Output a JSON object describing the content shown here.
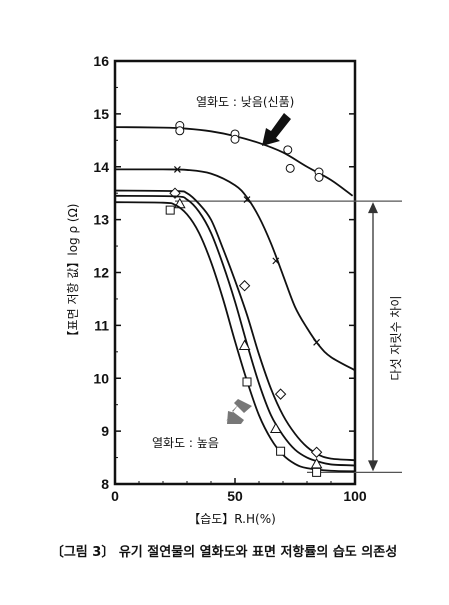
{
  "chart_data": {
    "type": "line",
    "title": "",
    "caption": "〔그림 3〕 유기 절연물의 열화도와 표면 저항률의 습도 의존성",
    "xlabel": "【습도】R.H(%)",
    "ylabel": "【표면 저항 값】log ρ (Ω)",
    "xlim": [
      0,
      100
    ],
    "ylim": [
      8,
      16
    ],
    "x_ticks": [
      "0",
      "50",
      "100"
    ],
    "y_ticks": [
      "8",
      "9",
      "10",
      "11",
      "12",
      "13",
      "14",
      "15",
      "16"
    ],
    "grid": false,
    "series": [
      {
        "name": "",
        "marker": "circle",
        "curve": [
          [
            0,
            14.75
          ],
          [
            20,
            14.74
          ],
          [
            30,
            14.72
          ],
          [
            40,
            14.67
          ],
          [
            50,
            14.58
          ],
          [
            60,
            14.45
          ],
          [
            70,
            14.27
          ],
          [
            80,
            14.0
          ],
          [
            90,
            13.75
          ],
          [
            99,
            13.45
          ]
        ],
        "points": [
          [
            27,
            14.78
          ],
          [
            27,
            14.68
          ],
          [
            50,
            14.62
          ],
          [
            50,
            14.52
          ],
          [
            72,
            14.32
          ],
          [
            73,
            13.97
          ],
          [
            85,
            13.9
          ],
          [
            85,
            13.8
          ]
        ]
      },
      {
        "name": "",
        "marker": "x",
        "curve": [
          [
            0,
            13.95
          ],
          [
            20,
            13.95
          ],
          [
            30,
            13.94
          ],
          [
            40,
            13.87
          ],
          [
            50,
            13.65
          ],
          [
            55,
            13.42
          ],
          [
            60,
            13.05
          ],
          [
            65,
            12.55
          ],
          [
            70,
            11.95
          ],
          [
            75,
            11.35
          ],
          [
            80,
            10.95
          ],
          [
            85,
            10.62
          ],
          [
            90,
            10.4
          ],
          [
            100,
            10.15
          ]
        ],
        "points": [
          [
            26,
            13.95
          ],
          [
            55,
            13.38
          ],
          [
            67,
            12.22
          ],
          [
            84,
            10.68
          ]
        ]
      },
      {
        "name": "",
        "marker": "diamond",
        "curve": [
          [
            0,
            13.55
          ],
          [
            25,
            13.54
          ],
          [
            30,
            13.5
          ],
          [
            35,
            13.3
          ],
          [
            40,
            13.0
          ],
          [
            45,
            12.45
          ],
          [
            50,
            11.85
          ],
          [
            55,
            11.2
          ],
          [
            60,
            10.45
          ],
          [
            65,
            9.8
          ],
          [
            70,
            9.3
          ],
          [
            75,
            8.95
          ],
          [
            80,
            8.7
          ],
          [
            85,
            8.55
          ],
          [
            90,
            8.48
          ],
          [
            100,
            8.45
          ]
        ],
        "points": [
          [
            25,
            13.5
          ],
          [
            54,
            11.75
          ],
          [
            69,
            9.7
          ],
          [
            84,
            8.6
          ]
        ]
      },
      {
        "name": "",
        "marker": "triangle",
        "curve": [
          [
            0,
            13.45
          ],
          [
            25,
            13.44
          ],
          [
            30,
            13.38
          ],
          [
            35,
            13.15
          ],
          [
            40,
            12.75
          ],
          [
            45,
            12.15
          ],
          [
            50,
            11.45
          ],
          [
            55,
            10.65
          ],
          [
            60,
            9.9
          ],
          [
            65,
            9.3
          ],
          [
            70,
            8.92
          ],
          [
            75,
            8.65
          ],
          [
            80,
            8.5
          ],
          [
            85,
            8.42
          ],
          [
            90,
            8.37
          ],
          [
            100,
            8.35
          ]
        ],
        "points": [
          [
            27,
            13.3
          ],
          [
            54,
            10.62
          ],
          [
            67,
            9.05
          ],
          [
            84,
            8.38
          ]
        ]
      },
      {
        "name": "",
        "marker": "square",
        "curve": [
          [
            0,
            13.33
          ],
          [
            20,
            13.32
          ],
          [
            25,
            13.28
          ],
          [
            30,
            13.1
          ],
          [
            35,
            12.75
          ],
          [
            40,
            12.2
          ],
          [
            45,
            11.5
          ],
          [
            50,
            10.7
          ],
          [
            55,
            9.95
          ],
          [
            60,
            9.3
          ],
          [
            65,
            8.85
          ],
          [
            70,
            8.55
          ],
          [
            75,
            8.38
          ],
          [
            80,
            8.3
          ],
          [
            90,
            8.25
          ],
          [
            100,
            8.24
          ]
        ],
        "points": [
          [
            23,
            13.18
          ],
          [
            55,
            9.93
          ],
          [
            69,
            8.62
          ],
          [
            84,
            8.22
          ]
        ]
      }
    ],
    "reference_lines": [
      {
        "y": 13.35,
        "x_from": 25
      },
      {
        "y": 8.22,
        "x_from": 80
      }
    ],
    "annotations": {
      "top_label": "열화도 : 낮음(신품)",
      "bottom_label": "열화도 : 높음",
      "range_label": "다섯 자릿수 차이"
    }
  }
}
